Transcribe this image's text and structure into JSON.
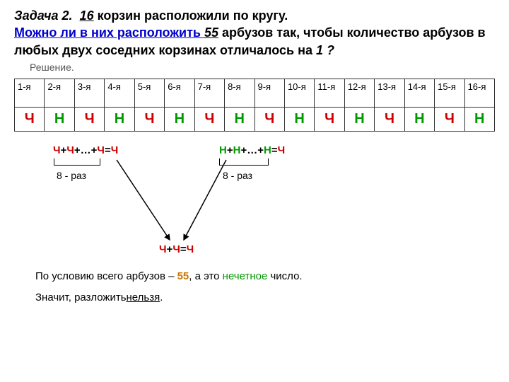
{
  "title": {
    "task_prefix": "Задача ",
    "task_num": "2.",
    "baskets_count": "16",
    "baskets_text": " корзин расположили по кругу.",
    "question_link": "Можно ли в них расположить ",
    "watermelons": "55",
    "question_text": " арбузов так, чтобы количество арбузов в любых двух соседних корзинах отличалось на ",
    "diff": "1 ?"
  },
  "solution_label": "Решение.",
  "table": {
    "headers": [
      "1-я",
      "2-я",
      "3-я",
      "4-я",
      "5-я",
      "6-я",
      "7-я",
      "8-я",
      "9-я",
      "10-я",
      "11-я",
      "12-я",
      "13-я",
      "14-я",
      "15-я",
      "16-я"
    ],
    "parity": [
      "Ч",
      "Н",
      "Ч",
      "Н",
      "Ч",
      "Н",
      "Ч",
      "Н",
      "Ч",
      "Н",
      "Ч",
      "Н",
      "Ч",
      "Н",
      "Ч",
      "Н"
    ]
  },
  "eq_left": {
    "p1": "Ч",
    "plus1": "+",
    "p2": "Ч",
    "plus2": "+…+",
    "p3": "Ч",
    "eq": "=",
    "p4": "Ч"
  },
  "eq_right": {
    "p1": "Н",
    "plus1": "+",
    "p2": "Н",
    "plus2": "+…+",
    "p3": "Н",
    "eq": "=",
    "p4": "Ч"
  },
  "times": "8 - раз",
  "eq_bottom": {
    "p1": "Ч",
    "plus": "+",
    "p2": "Ч",
    "eq": "=",
    "p3": "Ч"
  },
  "conclusion": {
    "line1a": "По условию всего арбузов – ",
    "line1b": "55",
    "line1c": ", а это ",
    "line1d": "нечетное",
    "line1e": " число.",
    "line2a": "Значит, разложить ",
    "line2b": "нельзя",
    "line2c": "."
  }
}
